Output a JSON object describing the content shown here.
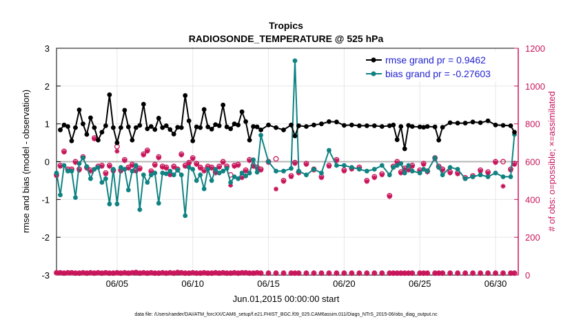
{
  "chart_data": {
    "type": "line",
    "title": "Tropics",
    "subtitle": "RADIOSONDE_TEMPERATURE @ 525 hPa",
    "xlabel": "Jun.01,2015 00:00:00 start",
    "ylabel": "rmse and bias (model - observation)",
    "y2label": "# of obs: o=possible; ×=assimilated",
    "footer": "data file: /Users/raeder/DAI/ATM_forcXX/CAM6_setup/f.e21.FHIST_BGC.f09_025.CAM6assim.011/Diags_NTrS_2015-06/obs_diag_output.nc",
    "xlim": [
      1.0,
      31.5
    ],
    "ylim": [
      -3,
      3
    ],
    "y2lim": [
      0,
      1200
    ],
    "x_ticks": [
      5,
      10,
      15,
      20,
      25,
      30
    ],
    "x_tick_labels": [
      "06/05",
      "06/10",
      "06/15",
      "06/20",
      "06/25",
      "06/30"
    ],
    "y_ticks": [
      -3,
      -2,
      -1,
      0,
      1,
      2,
      3
    ],
    "y_tick_labels": [
      "-3",
      "-2",
      "-1",
      "0",
      "1",
      "2",
      "3"
    ],
    "y2_ticks": [
      0,
      200,
      400,
      600,
      800,
      1000,
      1200
    ],
    "y2_tick_labels": [
      "0",
      "200",
      "400",
      "600",
      "800",
      "1000",
      "1200"
    ],
    "legend": {
      "position": "top-right",
      "entries": [
        "rmse grand pr = 0.9462",
        "bias grand pr = -0.27603"
      ]
    },
    "colors": {
      "rmse": "#000000",
      "bias": "#108282",
      "obs": "#c8145a",
      "zero": "#b4b4b4"
    },
    "series": [
      {
        "name": "rmse",
        "x": [
          1.25,
          1.5,
          1.75,
          2.0,
          2.25,
          2.5,
          2.75,
          3.0,
          3.25,
          3.5,
          3.75,
          4.0,
          4.25,
          4.5,
          4.75,
          5.0,
          5.25,
          5.5,
          5.75,
          6.0,
          6.25,
          6.5,
          6.75,
          7.0,
          7.25,
          7.5,
          7.75,
          8.0,
          8.25,
          8.5,
          8.75,
          9.0,
          9.25,
          9.5,
          9.75,
          10.0,
          10.25,
          10.5,
          10.75,
          11.0,
          11.25,
          11.5,
          11.75,
          12.0,
          12.25,
          12.5,
          12.75,
          13.0,
          13.25,
          13.5,
          13.75,
          14.0,
          14.25,
          14.5,
          15.0,
          15.5,
          16.0,
          16.5,
          16.75,
          17.0,
          17.5,
          18.0,
          18.5,
          19.0,
          19.5,
          20.0,
          20.5,
          21.0,
          21.5,
          22.0,
          22.5,
          23.0,
          23.25,
          23.5,
          23.75,
          24.0,
          24.25,
          24.5,
          25.0,
          25.25,
          25.5,
          26.0,
          26.25,
          26.5,
          27.0,
          27.5,
          28.0,
          28.5,
          29.0,
          29.5,
          30.0,
          30.5,
          31.0,
          31.25
        ],
        "values": [
          0.84,
          0.97,
          0.93,
          0.55,
          0.9,
          1.37,
          1.0,
          0.72,
          1.16,
          0.9,
          0.57,
          0.78,
          0.95,
          1.77,
          0.9,
          0.5,
          0.9,
          1.36,
          0.92,
          0.57,
          0.9,
          0.96,
          1.52,
          0.87,
          0.93,
          0.85,
          1.15,
          0.9,
          0.95,
          0.85,
          0.73,
          0.91,
          0.9,
          1.75,
          1.08,
          0.55,
          0.92,
          0.9,
          1.38,
          0.92,
          0.86,
          0.98,
          0.95,
          1.5,
          0.92,
          0.87,
          1.0,
          0.97,
          1.32,
          1.06,
          0.57,
          0.93,
          0.92,
          0.84,
          0.97,
          0.9,
          0.84,
          0.97,
          0.68,
          0.95,
          0.93,
          0.97,
          1.0,
          1.06,
          1.05,
          0.96,
          0.97,
          0.95,
          0.95,
          0.95,
          0.93,
          0.95,
          0.97,
          0.58,
          0.93,
          0.34,
          0.96,
          0.93,
          0.92,
          0.91,
          0.93,
          0.92,
          0.57,
          0.91,
          1.03,
          1.02,
          1.02,
          1.05,
          1.03,
          1.08,
          0.97,
          0.96,
          0.95,
          0.78
        ]
      },
      {
        "name": "bias",
        "x": [
          1.0,
          1.25,
          1.5,
          1.75,
          2.0,
          2.25,
          2.5,
          2.75,
          3.0,
          3.25,
          3.5,
          3.75,
          4.0,
          4.25,
          4.5,
          4.75,
          5.0,
          5.25,
          5.5,
          5.75,
          6.0,
          6.25,
          6.5,
          6.75,
          7.0,
          7.25,
          7.5,
          7.75,
          8.0,
          8.25,
          8.5,
          8.75,
          9.0,
          9.25,
          9.5,
          9.75,
          10.0,
          10.25,
          10.5,
          10.75,
          11.0,
          11.25,
          11.5,
          11.75,
          12.0,
          12.25,
          12.5,
          12.75,
          13.0,
          13.25,
          13.5,
          13.75,
          14.0,
          14.25,
          14.5,
          15.0,
          15.5,
          16.0,
          16.5,
          16.75,
          17.0,
          17.5,
          18.0,
          18.5,
          19.0,
          19.5,
          20.0,
          20.5,
          21.0,
          21.5,
          22.0,
          22.5,
          23.0,
          23.25,
          23.5,
          23.75,
          24.0,
          24.25,
          24.5,
          25.0,
          25.25,
          25.5,
          26.0,
          26.25,
          26.5,
          27.0,
          27.5,
          28.0,
          28.5,
          29.0,
          29.5,
          30.0,
          30.5,
          31.0,
          31.25
        ],
        "values": [
          -0.3,
          -0.88,
          -0.1,
          -0.25,
          -0.25,
          -0.95,
          -0.05,
          0.1,
          -0.13,
          -0.45,
          -0.2,
          -0.15,
          -0.55,
          -0.45,
          -1.12,
          -0.2,
          -1.12,
          -0.15,
          -0.2,
          -0.75,
          -0.25,
          -0.1,
          -1.27,
          -0.35,
          -0.55,
          -0.35,
          -0.3,
          -1.1,
          -0.3,
          -0.32,
          -0.25,
          -0.35,
          -0.22,
          -0.35,
          -1.43,
          -0.15,
          -0.2,
          -0.5,
          -0.35,
          -0.72,
          -0.2,
          -0.5,
          -0.2,
          -0.3,
          -0.25,
          -0.18,
          -0.55,
          -0.4,
          -0.45,
          -0.3,
          -0.38,
          -0.3,
          0.05,
          -0.28,
          0.7,
          0.0,
          -0.25,
          -0.25,
          -0.18,
          2.67,
          -0.25,
          -0.35,
          -0.2,
          -0.3,
          0.3,
          -0.1,
          -0.1,
          -0.15,
          -0.2,
          -0.25,
          -0.2,
          -0.1,
          -0.35,
          -0.15,
          -0.1,
          -0.05,
          -0.3,
          -0.1,
          -0.25,
          -0.3,
          -0.2,
          -0.25,
          0.1,
          -0.15,
          -0.35,
          -0.15,
          -0.2,
          -0.45,
          -0.4,
          -0.35,
          -0.4,
          -0.3,
          -0.4,
          -0.4,
          0.72
        ]
      },
      {
        "name": "obs possible",
        "axis": "right",
        "x": [
          1.0,
          1.25,
          1.5,
          1.75,
          2.0,
          2.25,
          2.5,
          2.75,
          3.0,
          3.25,
          3.5,
          3.75,
          4.0,
          4.25,
          4.5,
          4.75,
          5.0,
          5.25,
          5.5,
          5.75,
          6.0,
          6.25,
          6.5,
          6.75,
          7.0,
          7.25,
          7.5,
          7.75,
          8.0,
          8.25,
          8.5,
          8.75,
          9.0,
          9.25,
          9.5,
          9.75,
          10.0,
          10.25,
          10.5,
          10.75,
          11.0,
          11.25,
          11.5,
          11.75,
          12.0,
          12.25,
          12.5,
          12.75,
          13.0,
          13.25,
          13.5,
          13.75,
          14.0,
          14.25,
          14.5,
          15.0,
          15.5,
          16.0,
          16.5,
          16.75,
          17.0,
          17.5,
          18.0,
          18.5,
          19.0,
          19.5,
          20.0,
          20.5,
          21.0,
          21.5,
          22.0,
          22.5,
          23.0,
          23.25,
          23.5,
          23.75,
          24.0,
          24.25,
          24.5,
          25.0,
          25.25,
          25.5,
          26.0,
          26.25,
          26.5,
          27.0,
          27.5,
          28.0,
          28.5,
          29.0,
          29.5,
          30.0,
          30.5,
          31.0,
          31.25
        ],
        "values": [
          530,
          580,
          655,
          560,
          560,
          600,
          560,
          625,
          570,
          555,
          725,
          575,
          580,
          540,
          580,
          555,
          680,
          555,
          610,
          570,
          585,
          555,
          565,
          640,
          660,
          550,
          585,
          625,
          575,
          570,
          535,
          575,
          560,
          640,
          580,
          595,
          620,
          590,
          570,
          555,
          575,
          570,
          545,
          575,
          600,
          575,
          530,
          580,
          585,
          520,
          555,
          610,
          580,
          570,
          560,
          600,
          615,
          500,
          525,
          595,
          545,
          590,
          560,
          520,
          580,
          610,
          555,
          565,
          570,
          500,
          520,
          535,
          420,
          575,
          600,
          545,
          565,
          560,
          580,
          555,
          590,
          550,
          620,
          575,
          560,
          545,
          540,
          515,
          525,
          555,
          545,
          600,
          600,
          560,
          590
        ]
      },
      {
        "name": "obs assimilated",
        "axis": "right",
        "x": [
          1.0,
          1.25,
          1.5,
          1.75,
          2.0,
          2.25,
          2.5,
          2.75,
          3.0,
          3.25,
          3.5,
          3.75,
          4.0,
          4.25,
          4.5,
          4.75,
          5.0,
          5.25,
          5.5,
          5.75,
          6.0,
          6.25,
          6.5,
          6.75,
          7.0,
          7.25,
          7.5,
          7.75,
          8.0,
          8.25,
          8.5,
          8.75,
          9.0,
          9.25,
          9.5,
          9.75,
          10.0,
          10.25,
          10.5,
          10.75,
          11.0,
          11.25,
          11.5,
          11.75,
          12.0,
          12.25,
          12.5,
          12.75,
          13.0,
          13.25,
          13.5,
          13.75,
          14.0,
          14.25,
          14.5,
          15.0,
          15.5,
          16.0,
          16.5,
          16.75,
          17.0,
          17.5,
          18.0,
          18.5,
          19.0,
          19.5,
          20.0,
          20.5,
          21.0,
          21.5,
          22.0,
          22.5,
          23.0,
          23.25,
          23.5,
          23.75,
          24.0,
          24.25,
          24.5,
          25.0,
          25.25,
          25.5,
          26.0,
          26.25,
          26.5,
          27.0,
          27.5,
          28.0,
          28.5,
          29.0,
          29.5,
          30.0,
          30.5,
          31.0,
          31.25
        ],
        "values": [
          525,
          575,
          650,
          555,
          555,
          595,
          555,
          620,
          565,
          550,
          720,
          570,
          575,
          535,
          575,
          550,
          655,
          550,
          605,
          565,
          580,
          550,
          560,
          635,
          655,
          545,
          580,
          620,
          570,
          565,
          530,
          570,
          555,
          635,
          575,
          590,
          615,
          585,
          565,
          550,
          570,
          565,
          540,
          570,
          595,
          570,
          475,
          575,
          580,
          515,
          550,
          605,
          575,
          565,
          555,
          595,
          455,
          495,
          520,
          590,
          540,
          585,
          555,
          515,
          575,
          605,
          550,
          560,
          565,
          495,
          515,
          530,
          415,
          570,
          595,
          540,
          560,
          555,
          575,
          550,
          585,
          545,
          615,
          570,
          555,
          540,
          535,
          510,
          520,
          550,
          540,
          595,
          470,
          555,
          585
        ]
      },
      {
        "name": "obs near zero",
        "axis": "right",
        "x": [
          1.0,
          1.25,
          1.5,
          1.75,
          2.0,
          2.25,
          2.5,
          2.75,
          3.0,
          3.25,
          3.5,
          3.75,
          4.0,
          4.25,
          4.5,
          4.75,
          5.0,
          5.25,
          5.5,
          5.75,
          6.0,
          6.25,
          6.5,
          6.75,
          7.0,
          7.25,
          7.5,
          7.75,
          8.0,
          8.25,
          8.5,
          8.75,
          9.0,
          9.25,
          9.5,
          9.75,
          10.0,
          10.25,
          10.5,
          10.75,
          11.0,
          11.25,
          11.5,
          11.75,
          12.0,
          12.25,
          12.5,
          12.75,
          13.0,
          13.25,
          13.5,
          13.75,
          14.0,
          14.25,
          14.5,
          15.0,
          15.5,
          16.0,
          16.5,
          16.75,
          17.0,
          17.5,
          18.0,
          18.5,
          19.0,
          19.5,
          20.0,
          20.5,
          21.0,
          21.5,
          22.0,
          22.5,
          23.0,
          23.25,
          23.5,
          23.75,
          24.0,
          24.25,
          24.5,
          25.0,
          25.25,
          25.5,
          26.0,
          26.25,
          26.5,
          27.0,
          27.5,
          28.0,
          28.5,
          29.0,
          29.5,
          30.0,
          30.5,
          31.0,
          31.25
        ],
        "values": [
          12,
          12,
          10,
          12,
          12,
          10,
          10,
          12,
          10,
          12,
          10,
          12,
          10,
          12,
          10,
          10,
          12,
          10,
          12,
          10,
          12,
          14,
          10,
          12,
          10,
          12,
          10,
          10,
          12,
          10,
          12,
          10,
          14,
          12,
          10,
          10,
          12,
          10,
          10,
          12,
          10,
          10,
          12,
          10,
          12,
          10,
          10,
          12,
          10,
          12,
          12,
          10,
          10,
          12,
          10,
          10,
          10,
          10,
          10,
          10,
          10,
          10,
          10,
          10,
          10,
          10,
          10,
          10,
          10,
          10,
          10,
          10,
          10,
          10,
          10,
          10,
          10,
          10,
          10,
          10,
          10,
          10,
          10,
          10,
          10,
          10,
          10,
          10,
          10,
          10,
          10,
          10,
          10,
          10,
          10
        ]
      }
    ]
  }
}
